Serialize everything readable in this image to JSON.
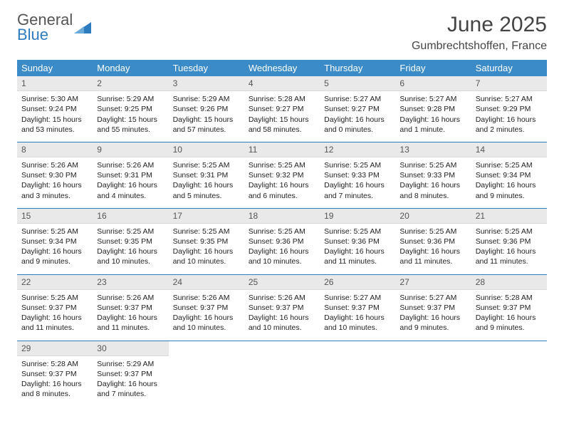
{
  "logo": {
    "word1": "General",
    "word2": "Blue"
  },
  "title": "June 2025",
  "location": "Gumbrechtshoffen, France",
  "colors": {
    "header_bg": "#3b8bc8",
    "header_text": "#ffffff",
    "daynum_bg": "#e9e9e9",
    "rule": "#2e7cc0",
    "text": "#222222",
    "logo_gray": "#555555",
    "logo_blue": "#2e7cc0"
  },
  "weekdays": [
    "Sunday",
    "Monday",
    "Tuesday",
    "Wednesday",
    "Thursday",
    "Friday",
    "Saturday"
  ],
  "weeks": [
    [
      {
        "n": "1",
        "sr": "Sunrise: 5:30 AM",
        "ss": "Sunset: 9:24 PM",
        "d1": "Daylight: 15 hours",
        "d2": "and 53 minutes."
      },
      {
        "n": "2",
        "sr": "Sunrise: 5:29 AM",
        "ss": "Sunset: 9:25 PM",
        "d1": "Daylight: 15 hours",
        "d2": "and 55 minutes."
      },
      {
        "n": "3",
        "sr": "Sunrise: 5:29 AM",
        "ss": "Sunset: 9:26 PM",
        "d1": "Daylight: 15 hours",
        "d2": "and 57 minutes."
      },
      {
        "n": "4",
        "sr": "Sunrise: 5:28 AM",
        "ss": "Sunset: 9:27 PM",
        "d1": "Daylight: 15 hours",
        "d2": "and 58 minutes."
      },
      {
        "n": "5",
        "sr": "Sunrise: 5:27 AM",
        "ss": "Sunset: 9:27 PM",
        "d1": "Daylight: 16 hours",
        "d2": "and 0 minutes."
      },
      {
        "n": "6",
        "sr": "Sunrise: 5:27 AM",
        "ss": "Sunset: 9:28 PM",
        "d1": "Daylight: 16 hours",
        "d2": "and 1 minute."
      },
      {
        "n": "7",
        "sr": "Sunrise: 5:27 AM",
        "ss": "Sunset: 9:29 PM",
        "d1": "Daylight: 16 hours",
        "d2": "and 2 minutes."
      }
    ],
    [
      {
        "n": "8",
        "sr": "Sunrise: 5:26 AM",
        "ss": "Sunset: 9:30 PM",
        "d1": "Daylight: 16 hours",
        "d2": "and 3 minutes."
      },
      {
        "n": "9",
        "sr": "Sunrise: 5:26 AM",
        "ss": "Sunset: 9:31 PM",
        "d1": "Daylight: 16 hours",
        "d2": "and 4 minutes."
      },
      {
        "n": "10",
        "sr": "Sunrise: 5:25 AM",
        "ss": "Sunset: 9:31 PM",
        "d1": "Daylight: 16 hours",
        "d2": "and 5 minutes."
      },
      {
        "n": "11",
        "sr": "Sunrise: 5:25 AM",
        "ss": "Sunset: 9:32 PM",
        "d1": "Daylight: 16 hours",
        "d2": "and 6 minutes."
      },
      {
        "n": "12",
        "sr": "Sunrise: 5:25 AM",
        "ss": "Sunset: 9:33 PM",
        "d1": "Daylight: 16 hours",
        "d2": "and 7 minutes."
      },
      {
        "n": "13",
        "sr": "Sunrise: 5:25 AM",
        "ss": "Sunset: 9:33 PM",
        "d1": "Daylight: 16 hours",
        "d2": "and 8 minutes."
      },
      {
        "n": "14",
        "sr": "Sunrise: 5:25 AM",
        "ss": "Sunset: 9:34 PM",
        "d1": "Daylight: 16 hours",
        "d2": "and 9 minutes."
      }
    ],
    [
      {
        "n": "15",
        "sr": "Sunrise: 5:25 AM",
        "ss": "Sunset: 9:34 PM",
        "d1": "Daylight: 16 hours",
        "d2": "and 9 minutes."
      },
      {
        "n": "16",
        "sr": "Sunrise: 5:25 AM",
        "ss": "Sunset: 9:35 PM",
        "d1": "Daylight: 16 hours",
        "d2": "and 10 minutes."
      },
      {
        "n": "17",
        "sr": "Sunrise: 5:25 AM",
        "ss": "Sunset: 9:35 PM",
        "d1": "Daylight: 16 hours",
        "d2": "and 10 minutes."
      },
      {
        "n": "18",
        "sr": "Sunrise: 5:25 AM",
        "ss": "Sunset: 9:36 PM",
        "d1": "Daylight: 16 hours",
        "d2": "and 10 minutes."
      },
      {
        "n": "19",
        "sr": "Sunrise: 5:25 AM",
        "ss": "Sunset: 9:36 PM",
        "d1": "Daylight: 16 hours",
        "d2": "and 11 minutes."
      },
      {
        "n": "20",
        "sr": "Sunrise: 5:25 AM",
        "ss": "Sunset: 9:36 PM",
        "d1": "Daylight: 16 hours",
        "d2": "and 11 minutes."
      },
      {
        "n": "21",
        "sr": "Sunrise: 5:25 AM",
        "ss": "Sunset: 9:36 PM",
        "d1": "Daylight: 16 hours",
        "d2": "and 11 minutes."
      }
    ],
    [
      {
        "n": "22",
        "sr": "Sunrise: 5:25 AM",
        "ss": "Sunset: 9:37 PM",
        "d1": "Daylight: 16 hours",
        "d2": "and 11 minutes."
      },
      {
        "n": "23",
        "sr": "Sunrise: 5:26 AM",
        "ss": "Sunset: 9:37 PM",
        "d1": "Daylight: 16 hours",
        "d2": "and 11 minutes."
      },
      {
        "n": "24",
        "sr": "Sunrise: 5:26 AM",
        "ss": "Sunset: 9:37 PM",
        "d1": "Daylight: 16 hours",
        "d2": "and 10 minutes."
      },
      {
        "n": "25",
        "sr": "Sunrise: 5:26 AM",
        "ss": "Sunset: 9:37 PM",
        "d1": "Daylight: 16 hours",
        "d2": "and 10 minutes."
      },
      {
        "n": "26",
        "sr": "Sunrise: 5:27 AM",
        "ss": "Sunset: 9:37 PM",
        "d1": "Daylight: 16 hours",
        "d2": "and 10 minutes."
      },
      {
        "n": "27",
        "sr": "Sunrise: 5:27 AM",
        "ss": "Sunset: 9:37 PM",
        "d1": "Daylight: 16 hours",
        "d2": "and 9 minutes."
      },
      {
        "n": "28",
        "sr": "Sunrise: 5:28 AM",
        "ss": "Sunset: 9:37 PM",
        "d1": "Daylight: 16 hours",
        "d2": "and 9 minutes."
      }
    ],
    [
      {
        "n": "29",
        "sr": "Sunrise: 5:28 AM",
        "ss": "Sunset: 9:37 PM",
        "d1": "Daylight: 16 hours",
        "d2": "and 8 minutes."
      },
      {
        "n": "30",
        "sr": "Sunrise: 5:29 AM",
        "ss": "Sunset: 9:37 PM",
        "d1": "Daylight: 16 hours",
        "d2": "and 7 minutes."
      },
      {
        "empty": true
      },
      {
        "empty": true
      },
      {
        "empty": true
      },
      {
        "empty": true
      },
      {
        "empty": true
      }
    ]
  ]
}
